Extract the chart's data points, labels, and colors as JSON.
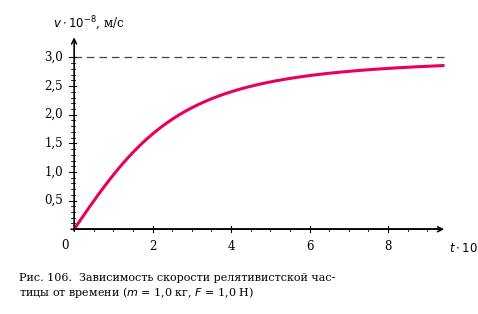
{
  "curve_color": "#E8005A",
  "curve_linewidth": 2.2,
  "dashed_y": 3.0,
  "dashed_color": "#444444",
  "yticks_major": [
    0.5,
    1.0,
    1.5,
    2.0,
    2.5,
    3.0
  ],
  "ytick_labels": [
    "0,5",
    "1,0",
    "1,5",
    "2,0",
    "2,5",
    "3,0"
  ],
  "xticks_major": [
    2,
    4,
    6,
    8
  ],
  "xtick_labels": [
    "2",
    "4",
    "6",
    "8"
  ],
  "xlim": [
    0,
    9.5
  ],
  "ylim": [
    0,
    3.4
  ],
  "mass_kg": 1.0,
  "force_N": 1.0,
  "c": 3.0,
  "background_color": "#ffffff"
}
